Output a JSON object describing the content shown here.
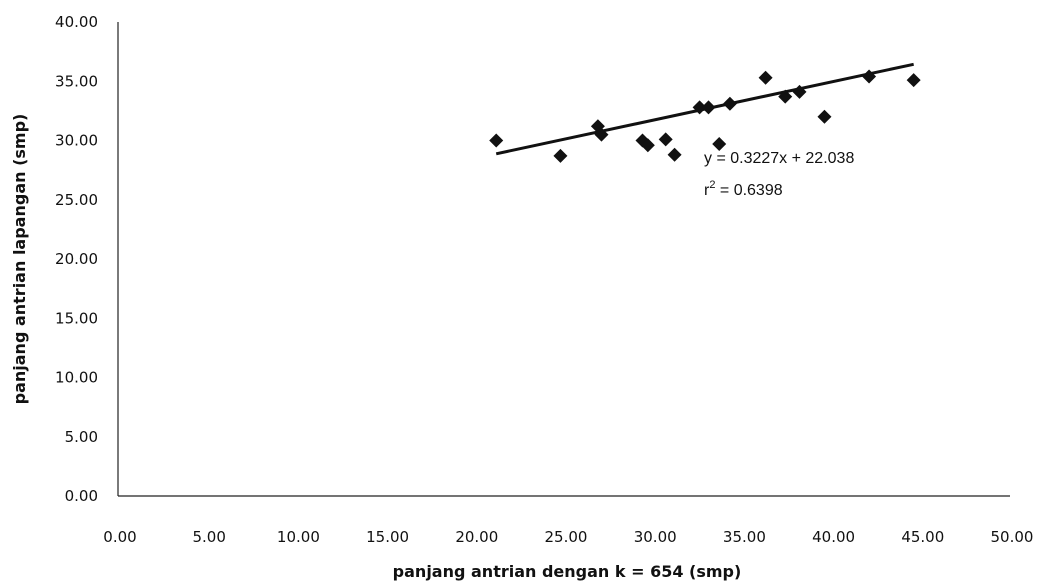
{
  "chart_data": {
    "type": "scatter",
    "title": "",
    "xlabel": "panjang antrian dengan k = 654 (smp)",
    "ylabel": "panjang antrian lapangan (smp)",
    "xlim": [
      0,
      50
    ],
    "ylim": [
      0,
      40
    ],
    "x_ticks": [
      "0.00",
      "5.00",
      "10.00",
      "15.00",
      "20.00",
      "25.00",
      "30.00",
      "35.00",
      "40.00",
      "45.00",
      "50.00"
    ],
    "y_ticks": [
      "0.00",
      "5.00",
      "10.00",
      "15.00",
      "20.00",
      "25.00",
      "30.00",
      "35.00",
      "40.00"
    ],
    "grid": false,
    "marker": "diamond",
    "marker_color": "#111111",
    "points": [
      {
        "x": 21.2,
        "y": 30.0
      },
      {
        "x": 24.8,
        "y": 28.7
      },
      {
        "x": 26.9,
        "y": 31.2
      },
      {
        "x": 27.1,
        "y": 30.5
      },
      {
        "x": 29.4,
        "y": 30.0
      },
      {
        "x": 29.7,
        "y": 29.6
      },
      {
        "x": 30.7,
        "y": 30.1
      },
      {
        "x": 31.2,
        "y": 28.8
      },
      {
        "x": 32.6,
        "y": 32.8
      },
      {
        "x": 33.1,
        "y": 32.8
      },
      {
        "x": 33.7,
        "y": 29.7
      },
      {
        "x": 34.3,
        "y": 33.1
      },
      {
        "x": 36.3,
        "y": 35.3
      },
      {
        "x": 37.4,
        "y": 33.7
      },
      {
        "x": 38.2,
        "y": 34.1
      },
      {
        "x": 39.6,
        "y": 32.0
      },
      {
        "x": 42.1,
        "y": 35.4
      },
      {
        "x": 44.6,
        "y": 35.1
      }
    ],
    "trendline": {
      "type": "linear",
      "slope": 0.3227,
      "intercept": 22.038,
      "x_range": [
        21.2,
        44.6
      ]
    },
    "annotations": {
      "equation": "y = 0.3227x + 22.038",
      "r2_prefix": "r",
      "r2_superscript": "2",
      "r2_value": " = 0.6398"
    }
  }
}
